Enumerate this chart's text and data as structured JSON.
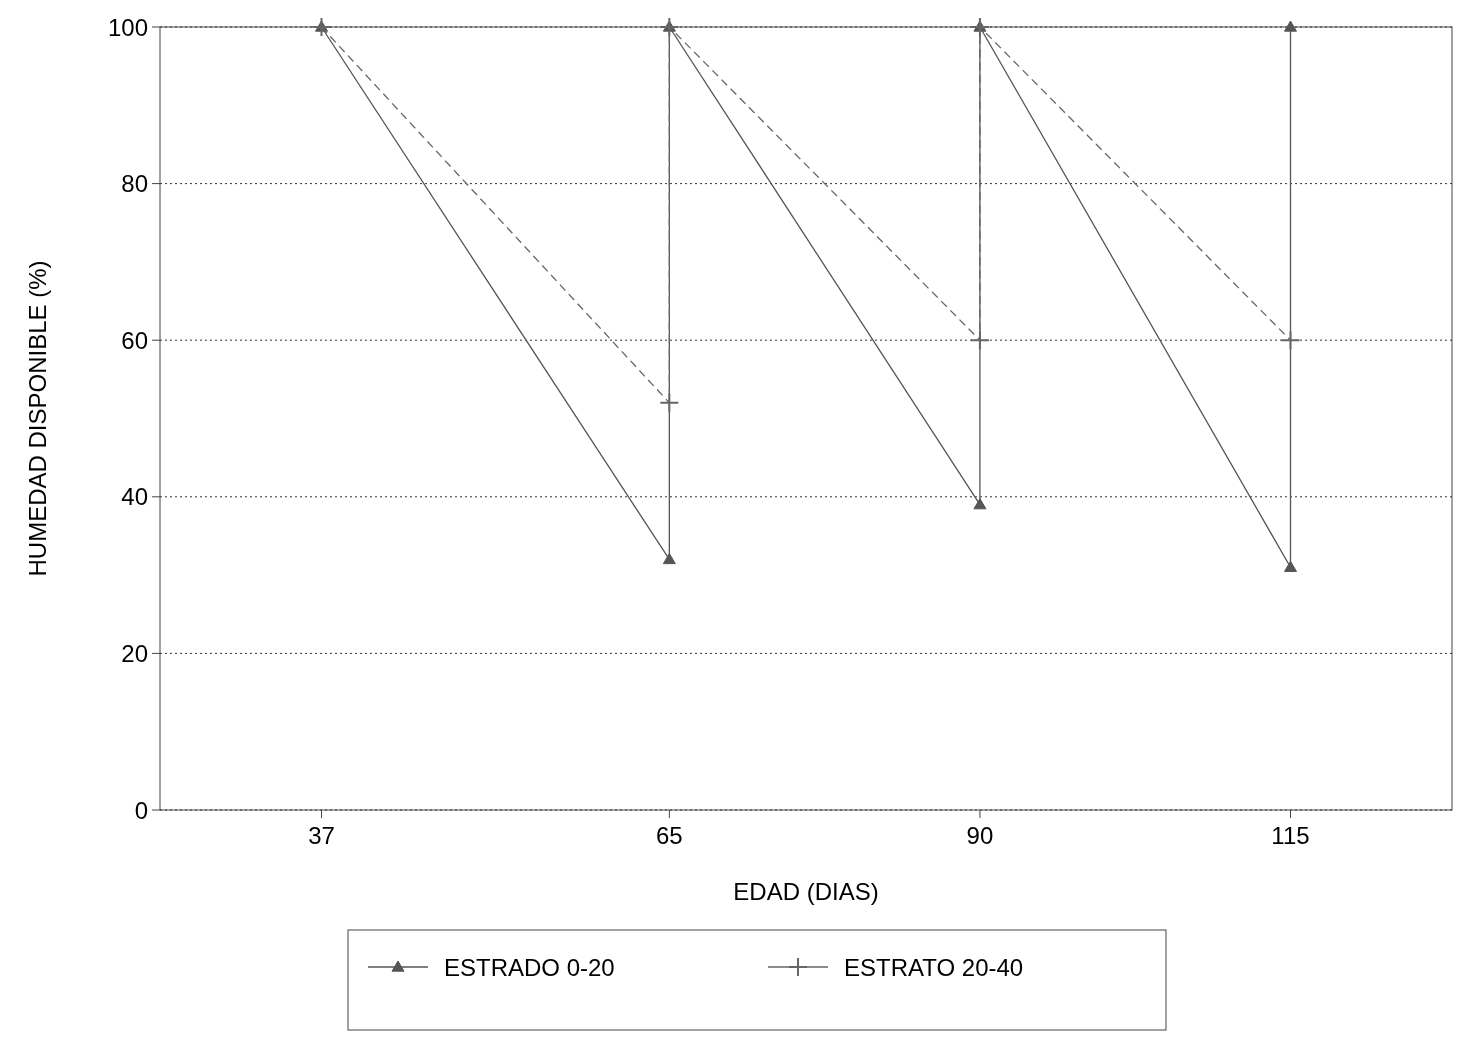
{
  "chart_data": {
    "type": "line",
    "xlabel": "EDAD (DIAS)",
    "ylabel": "HUMEDAD DISPONIBLE (%)",
    "xlim": [
      24,
      128
    ],
    "xticks": [
      37,
      65,
      90,
      115
    ],
    "ylim": [
      0,
      100
    ],
    "yticks": [
      0,
      20,
      40,
      60,
      80,
      100
    ],
    "grid": "y",
    "legend": "bottom",
    "series": [
      {
        "name": "ESTRADO 0-20",
        "color": "#555555",
        "marker": "triangle",
        "line_style": "solid",
        "x": [
          37,
          65,
          65,
          90,
          90,
          115,
          115
        ],
        "values": [
          100,
          32,
          100,
          39,
          100,
          31,
          100
        ]
      },
      {
        "name": "ESTRATO 20-40",
        "color": "#666666",
        "marker": "cross",
        "line_style": "dashed",
        "x": [
          37,
          65,
          65,
          90,
          90,
          115
        ],
        "values": [
          100,
          52,
          100,
          60,
          100,
          60
        ]
      }
    ]
  }
}
